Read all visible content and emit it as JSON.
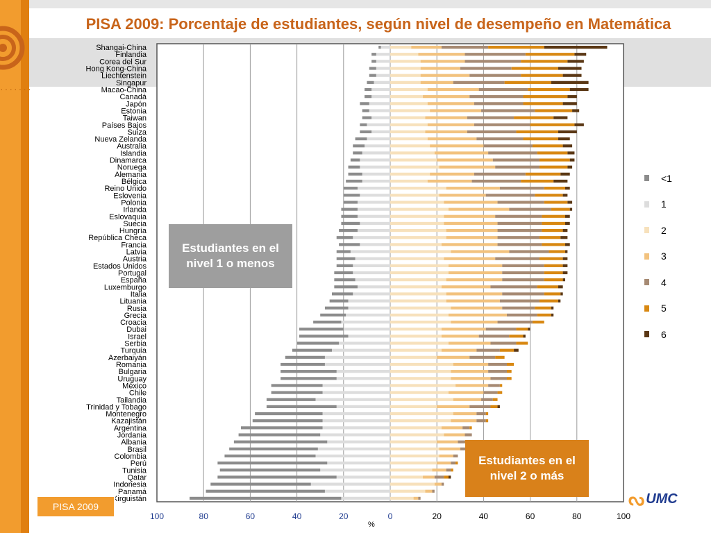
{
  "title": "PISA 2009: Porcentaje de estudiantes, según nivel de desempeño en Matemática",
  "callout_left": "Estudiantes en el nivel 1 o menos",
  "callout_right": "Estudiantes en el nivel 2 o más",
  "badge": "PISA 2009",
  "logo_text": "UMC",
  "logo_icon": "umc-swirl-icon",
  "colors": {
    "lt1": "#8c8c8c",
    "l1": "#dddddd",
    "l2": "#f7e1bc",
    "l3": "#f2c27e",
    "l4": "#a68a73",
    "l5": "#d88812",
    "l6": "#5a3714",
    "title": "#c8641a",
    "callout_left_bg": "#9e9e9e",
    "callout_right_bg": "#d9811a",
    "tick_label": "#1f3b8f"
  },
  "chart_data": {
    "type": "bar",
    "orientation": "horizontal-diverging",
    "xlabel": "%",
    "ylabel": "",
    "xlim": [
      -100,
      100
    ],
    "x_ticks": [
      100,
      80,
      60,
      40,
      20,
      0,
      20,
      40,
      60,
      80,
      100
    ],
    "grid": true,
    "legend_position": "right",
    "series_names": [
      "<1",
      "1",
      "2",
      "3",
      "4",
      "5",
      "6"
    ],
    "categories": [
      "Shangai-China",
      "Finlandia",
      "Corea del Sur",
      "Hong Kong-China",
      "Liechtenstein",
      "Singapur",
      "Macao-China",
      "Canadá",
      "Japón",
      "Estonia",
      "Taiwan",
      "Países Bajos",
      "Suiza",
      "Nueva Zelanda",
      "Australia",
      "Islandia",
      "Dinamarca",
      "Noruega",
      "Alemania",
      "Bélgica",
      "Reino Unido",
      "Eslovenia",
      "Polonia",
      "Irlanda",
      "Eslovaquia",
      "Suecia",
      "Hungría",
      "República Checa",
      "Francia",
      "Latvia",
      "Austria",
      "Estados Unidos",
      "Portugal",
      "España",
      "Luxemburgo",
      "Italia",
      "Lituania",
      "Rusia",
      "Grecia",
      "Croacia",
      "Dubai",
      "Israel",
      "Serbia",
      "Turquía",
      "Azerbaiyán",
      "Romania",
      "Bulgaria",
      "Uruguay",
      "México",
      "Chile",
      "Tailandia",
      "Trinidad y Tobago",
      "Montenegro",
      "Kazajistán",
      "Argentina",
      "Jordania",
      "Albania",
      "Brasil",
      "Colombia",
      "Perú",
      "Tunisia",
      "Qatar",
      "Indonesia",
      "Panamá",
      "Kirguistán"
    ],
    "below1": [
      1,
      2,
      2,
      3,
      3,
      3,
      3,
      3,
      4,
      3,
      4,
      3,
      5,
      5,
      5,
      4,
      4,
      5,
      6,
      7,
      6,
      7,
      6,
      7,
      7,
      8,
      8,
      7,
      9,
      6,
      8,
      7,
      8,
      9,
      10,
      9,
      8,
      10,
      11,
      12,
      19,
      21,
      18,
      17,
      17,
      19,
      24,
      24,
      22,
      22,
      21,
      30,
      29,
      30,
      35,
      35,
      40,
      38,
      39,
      47,
      43,
      51,
      43,
      51,
      65
    ],
    "level1": [
      4,
      6,
      6,
      6,
      6,
      7,
      8,
      8,
      9,
      9,
      8,
      10,
      8,
      10,
      11,
      12,
      13,
      13,
      12,
      12,
      14,
      13,
      14,
      14,
      14,
      13,
      14,
      16,
      13,
      17,
      15,
      16,
      16,
      15,
      14,
      16,
      18,
      18,
      19,
      21,
      20,
      18,
      22,
      25,
      28,
      28,
      23,
      23,
      29,
      29,
      32,
      23,
      29,
      29,
      29,
      30,
      27,
      31,
      32,
      27,
      30,
      23,
      34,
      28,
      21
    ],
    "level2": [
      9,
      12,
      13,
      13,
      13,
      13,
      16,
      14,
      16,
      17,
      15,
      16,
      15,
      16,
      17,
      19,
      20,
      21,
      17,
      16,
      24,
      21,
      23,
      25,
      23,
      23,
      24,
      24,
      22,
      26,
      23,
      25,
      25,
      24,
      22,
      24,
      24,
      26,
      25,
      26,
      22,
      22,
      25,
      22,
      20,
      27,
      26,
      26,
      28,
      25,
      27,
      20,
      27,
      26,
      22,
      23,
      20,
      21,
      21,
      20,
      18,
      14,
      19,
      15,
      10
    ],
    "level3": [
      13,
      20,
      19,
      17,
      21,
      14,
      22,
      20,
      20,
      22,
      18,
      20,
      18,
      21,
      23,
      23,
      24,
      24,
      19,
      19,
      23,
      20,
      23,
      26,
      22,
      23,
      22,
      22,
      24,
      25,
      22,
      23,
      23,
      24,
      21,
      24,
      23,
      22,
      25,
      20,
      19,
      16,
      18,
      15,
      14,
      15,
      16,
      17,
      14,
      15,
      12,
      14,
      10,
      11,
      9,
      9,
      9,
      9,
      6,
      6,
      6,
      5,
      3,
      3,
      2
    ],
    "level4": [
      20,
      26,
      24,
      22,
      22,
      22,
      21,
      23,
      21,
      23,
      20,
      24,
      21,
      20,
      21,
      21,
      20,
      19,
      22,
      21,
      19,
      21,
      20,
      18,
      20,
      19,
      19,
      18,
      19,
      17,
      19,
      18,
      18,
      18,
      20,
      18,
      17,
      14,
      13,
      15,
      13,
      13,
      11,
      10,
      11,
      8,
      8,
      7,
      5,
      6,
      5,
      9,
      4,
      4,
      3,
      3,
      3,
      3,
      2,
      2,
      2,
      4,
      1,
      1,
      1
    ],
    "level5": [
      24,
      21,
      20,
      20,
      18,
      20,
      18,
      19,
      17,
      16,
      17,
      19,
      18,
      15,
      13,
      13,
      13,
      12,
      15,
      14,
      9,
      12,
      10,
      8,
      10,
      10,
      9,
      9,
      10,
      7,
      10,
      8,
      8,
      8,
      9,
      7,
      8,
      7,
      6,
      5,
      5,
      6,
      5,
      6,
      4,
      3,
      2,
      2,
      1,
      2,
      2,
      3,
      1,
      1,
      1,
      0,
      1,
      1,
      0,
      1,
      1,
      2,
      0,
      0,
      0
    ],
    "level6": [
      27,
      5,
      7,
      10,
      8,
      16,
      8,
      4,
      6,
      3,
      6,
      4,
      8,
      5,
      4,
      3,
      2,
      2,
      4,
      6,
      2,
      2,
      2,
      1,
      2,
      2,
      2,
      3,
      2,
      1,
      2,
      2,
      2,
      1,
      2,
      1,
      1,
      1,
      1,
      0,
      1,
      1,
      0,
      2,
      0,
      0,
      0,
      0,
      0,
      0,
      0,
      1,
      0,
      0,
      0,
      0,
      0,
      0,
      0,
      0,
      0,
      1,
      0,
      0,
      0
    ]
  },
  "legend": {
    "items": [
      {
        "label": "<1",
        "key": "lt1"
      },
      {
        "label": "1",
        "key": "l1"
      },
      {
        "label": "2",
        "key": "l2"
      },
      {
        "label": "3",
        "key": "l3"
      },
      {
        "label": "4",
        "key": "l4"
      },
      {
        "label": "5",
        "key": "l5"
      },
      {
        "label": "6",
        "key": "l6"
      }
    ]
  }
}
